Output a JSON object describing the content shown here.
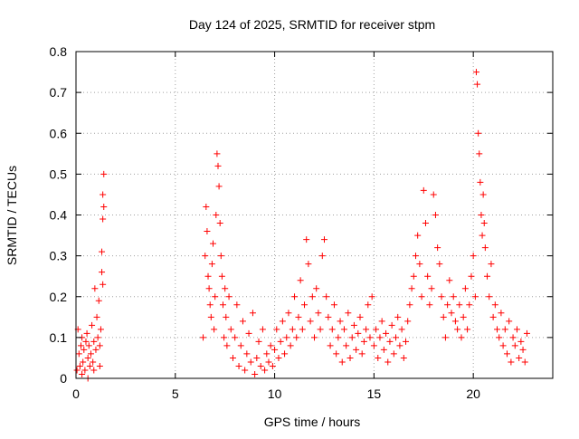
{
  "chart_data": {
    "type": "scatter",
    "title": "Day 124 of 2025, SRMTID for receiver stpm",
    "xlabel": "GPS time / hours",
    "ylabel": "SRMTID / TECUs",
    "xlim": [
      0,
      24
    ],
    "ylim": [
      0,
      0.8
    ],
    "x_ticks": [
      0,
      5,
      10,
      15,
      20
    ],
    "x_tick_labels": [
      "0",
      "5",
      "10",
      "15",
      "20"
    ],
    "y_ticks": [
      0,
      0.1,
      0.2,
      0.3,
      0.4,
      0.5,
      0.6,
      0.7,
      0.8
    ],
    "y_tick_labels": [
      "0",
      "0.1",
      "0.2",
      "0.3",
      "0.4",
      "0.5",
      "0.6",
      "0.7",
      "0.8"
    ],
    "grid": true,
    "marker": "+",
    "colors": {
      "points": "#ff0000",
      "grid": "#a0a0a0",
      "axes": "#000000",
      "background": "#ffffff"
    },
    "series": [
      {
        "name": "SRMTID",
        "points": [
          [
            0.05,
            0.02
          ],
          [
            0.1,
            0.12
          ],
          [
            0.15,
            0.06
          ],
          [
            0.2,
            0.03
          ],
          [
            0.25,
            0.08
          ],
          [
            0.3,
            0.1
          ],
          [
            0.35,
            0.04
          ],
          [
            0.4,
            0.07
          ],
          [
            0.45,
            0.02
          ],
          [
            0.5,
            0.09
          ],
          [
            0.55,
            0.11
          ],
          [
            0.6,
            0.05
          ],
          [
            0.65,
            0.08
          ],
          [
            0.7,
            0.03
          ],
          [
            0.75,
            0.06
          ],
          [
            0.8,
            0.13
          ],
          [
            0.85,
            0.04
          ],
          [
            0.9,
            0.09
          ],
          [
            0.95,
            0.22
          ],
          [
            1.0,
            0.07
          ],
          [
            1.05,
            0.15
          ],
          [
            1.1,
            0.1
          ],
          [
            1.15,
            0.19
          ],
          [
            1.2,
            0.08
          ],
          [
            1.25,
            0.12
          ],
          [
            1.3,
            0.26
          ],
          [
            1.3,
            0.31
          ],
          [
            1.35,
            0.45
          ],
          [
            1.35,
            0.39
          ],
          [
            1.4,
            0.5
          ],
          [
            1.4,
            0.42
          ],
          [
            1.35,
            0.23
          ],
          [
            0.3,
            0.01
          ],
          [
            0.6,
            0.0
          ],
          [
            0.9,
            0.02
          ],
          [
            1.2,
            0.03
          ],
          [
            6.4,
            0.1
          ],
          [
            6.5,
            0.3
          ],
          [
            6.55,
            0.42
          ],
          [
            6.6,
            0.36
          ],
          [
            6.65,
            0.25
          ],
          [
            6.7,
            0.22
          ],
          [
            6.75,
            0.18
          ],
          [
            6.8,
            0.15
          ],
          [
            6.85,
            0.28
          ],
          [
            6.9,
            0.33
          ],
          [
            6.95,
            0.12
          ],
          [
            7.0,
            0.2
          ],
          [
            7.05,
            0.4
          ],
          [
            7.1,
            0.55
          ],
          [
            7.15,
            0.52
          ],
          [
            7.2,
            0.47
          ],
          [
            7.25,
            0.38
          ],
          [
            7.3,
            0.3
          ],
          [
            7.35,
            0.25
          ],
          [
            7.4,
            0.18
          ],
          [
            7.45,
            0.1
          ],
          [
            7.5,
            0.22
          ],
          [
            7.55,
            0.15
          ],
          [
            7.6,
            0.08
          ],
          [
            7.7,
            0.2
          ],
          [
            7.8,
            0.12
          ],
          [
            7.9,
            0.05
          ],
          [
            8.0,
            0.1
          ],
          [
            8.1,
            0.18
          ],
          [
            8.2,
            0.03
          ],
          [
            8.3,
            0.08
          ],
          [
            8.4,
            0.14
          ],
          [
            8.5,
            0.02
          ],
          [
            8.6,
            0.06
          ],
          [
            8.7,
            0.11
          ],
          [
            8.8,
            0.04
          ],
          [
            8.9,
            0.16
          ],
          [
            9.0,
            0.01
          ],
          [
            9.1,
            0.05
          ],
          [
            9.2,
            0.09
          ],
          [
            9.3,
            0.03
          ],
          [
            9.4,
            0.12
          ],
          [
            9.5,
            0.02
          ],
          [
            9.6,
            0.06
          ],
          [
            9.7,
            0.04
          ],
          [
            9.8,
            0.08
          ],
          [
            9.9,
            0.03
          ],
          [
            10.0,
            0.07
          ],
          [
            10.1,
            0.12
          ],
          [
            10.2,
            0.05
          ],
          [
            10.3,
            0.09
          ],
          [
            10.4,
            0.14
          ],
          [
            10.5,
            0.06
          ],
          [
            10.6,
            0.1
          ],
          [
            10.7,
            0.16
          ],
          [
            10.8,
            0.08
          ],
          [
            10.9,
            0.12
          ],
          [
            11.0,
            0.2
          ],
          [
            11.1,
            0.1
          ],
          [
            11.2,
            0.15
          ],
          [
            11.3,
            0.24
          ],
          [
            11.4,
            0.12
          ],
          [
            11.5,
            0.18
          ],
          [
            11.6,
            0.34
          ],
          [
            11.7,
            0.28
          ],
          [
            11.8,
            0.14
          ],
          [
            11.9,
            0.2
          ],
          [
            12.0,
            0.1
          ],
          [
            12.1,
            0.22
          ],
          [
            12.2,
            0.16
          ],
          [
            12.3,
            0.12
          ],
          [
            12.4,
            0.3
          ],
          [
            12.5,
            0.34
          ],
          [
            12.6,
            0.2
          ],
          [
            12.7,
            0.15
          ],
          [
            12.8,
            0.08
          ],
          [
            12.9,
            0.12
          ],
          [
            13.0,
            0.18
          ],
          [
            13.1,
            0.06
          ],
          [
            13.2,
            0.1
          ],
          [
            13.3,
            0.14
          ],
          [
            13.4,
            0.04
          ],
          [
            13.5,
            0.12
          ],
          [
            13.6,
            0.08
          ],
          [
            13.7,
            0.16
          ],
          [
            13.8,
            0.05
          ],
          [
            13.9,
            0.1
          ],
          [
            14.0,
            0.13
          ],
          [
            14.1,
            0.07
          ],
          [
            14.2,
            0.11
          ],
          [
            14.3,
            0.15
          ],
          [
            14.4,
            0.06
          ],
          [
            14.5,
            0.09
          ],
          [
            14.6,
            0.12
          ],
          [
            14.7,
            0.18
          ],
          [
            14.8,
            0.1
          ],
          [
            14.9,
            0.2
          ],
          [
            15.0,
            0.08
          ],
          [
            15.1,
            0.12
          ],
          [
            15.2,
            0.05
          ],
          [
            15.3,
            0.1
          ],
          [
            15.4,
            0.14
          ],
          [
            15.5,
            0.07
          ],
          [
            15.6,
            0.11
          ],
          [
            15.7,
            0.04
          ],
          [
            15.8,
            0.09
          ],
          [
            15.9,
            0.13
          ],
          [
            16.0,
            0.06
          ],
          [
            16.1,
            0.1
          ],
          [
            16.2,
            0.15
          ],
          [
            16.3,
            0.08
          ],
          [
            16.4,
            0.12
          ],
          [
            16.5,
            0.05
          ],
          [
            16.6,
            0.09
          ],
          [
            16.7,
            0.14
          ],
          [
            16.8,
            0.18
          ],
          [
            16.9,
            0.22
          ],
          [
            17.0,
            0.25
          ],
          [
            17.1,
            0.3
          ],
          [
            17.2,
            0.35
          ],
          [
            17.3,
            0.28
          ],
          [
            17.4,
            0.2
          ],
          [
            17.5,
            0.46
          ],
          [
            17.6,
            0.38
          ],
          [
            17.7,
            0.25
          ],
          [
            17.8,
            0.18
          ],
          [
            17.9,
            0.22
          ],
          [
            18.0,
            0.45
          ],
          [
            18.1,
            0.4
          ],
          [
            18.2,
            0.32
          ],
          [
            18.3,
            0.28
          ],
          [
            18.4,
            0.2
          ],
          [
            18.5,
            0.15
          ],
          [
            18.6,
            0.1
          ],
          [
            18.7,
            0.18
          ],
          [
            18.8,
            0.24
          ],
          [
            18.9,
            0.16
          ],
          [
            19.0,
            0.2
          ],
          [
            19.1,
            0.14
          ],
          [
            19.2,
            0.12
          ],
          [
            19.3,
            0.18
          ],
          [
            19.4,
            0.1
          ],
          [
            19.5,
            0.15
          ],
          [
            19.6,
            0.22
          ],
          [
            19.7,
            0.12
          ],
          [
            19.8,
            0.18
          ],
          [
            19.9,
            0.25
          ],
          [
            20.0,
            0.3
          ],
          [
            20.1,
            0.2
          ],
          [
            20.15,
            0.75
          ],
          [
            20.2,
            0.72
          ],
          [
            20.25,
            0.6
          ],
          [
            20.3,
            0.55
          ],
          [
            20.35,
            0.48
          ],
          [
            20.4,
            0.4
          ],
          [
            20.45,
            0.35
          ],
          [
            20.5,
            0.45
          ],
          [
            20.55,
            0.38
          ],
          [
            20.6,
            0.32
          ],
          [
            20.7,
            0.25
          ],
          [
            20.8,
            0.2
          ],
          [
            20.9,
            0.28
          ],
          [
            21.0,
            0.15
          ],
          [
            21.1,
            0.18
          ],
          [
            21.2,
            0.12
          ],
          [
            21.3,
            0.1
          ],
          [
            21.4,
            0.16
          ],
          [
            21.5,
            0.08
          ],
          [
            21.6,
            0.12
          ],
          [
            21.7,
            0.06
          ],
          [
            21.8,
            0.14
          ],
          [
            21.9,
            0.04
          ],
          [
            22.0,
            0.1
          ],
          [
            22.1,
            0.08
          ],
          [
            22.2,
            0.12
          ],
          [
            22.3,
            0.05
          ],
          [
            22.4,
            0.09
          ],
          [
            22.5,
            0.07
          ],
          [
            22.6,
            0.04
          ],
          [
            22.7,
            0.11
          ]
        ]
      }
    ]
  }
}
